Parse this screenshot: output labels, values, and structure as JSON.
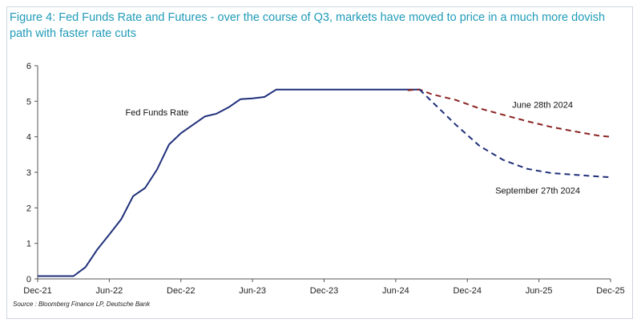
{
  "chart_data": {
    "type": "line",
    "title": "Figure 4: Fed Funds Rate and Futures - over the course of Q3, markets have moved to price in a much more dovish path with faster rate cuts",
    "source": "Source : Bloomberg Finance LP, Deutsche Bank",
    "xlabel": "",
    "ylabel": "",
    "x_ticks": [
      "Dec-21",
      "Jun-22",
      "Dec-22",
      "Jun-23",
      "Dec-23",
      "Jun-24",
      "Dec-24",
      "Jun-25",
      "Dec-25"
    ],
    "y_ticks": [
      "0",
      "1",
      "2",
      "3",
      "4",
      "5",
      "6"
    ],
    "ylim": [
      0,
      6
    ],
    "x_range_months": [
      0,
      48
    ],
    "series": [
      {
        "name": "Fed Funds Rate",
        "style": "solid",
        "color": "#1f2f7a",
        "points": [
          [
            0,
            0.08
          ],
          [
            2,
            0.08
          ],
          [
            3,
            0.08
          ],
          [
            4,
            0.33
          ],
          [
            5,
            0.83
          ],
          [
            6,
            1.25
          ],
          [
            7,
            1.68
          ],
          [
            8,
            2.33
          ],
          [
            9,
            2.56
          ],
          [
            10,
            3.08
          ],
          [
            11,
            3.78
          ],
          [
            12,
            4.1
          ],
          [
            14,
            4.57
          ],
          [
            15,
            4.65
          ],
          [
            16,
            4.83
          ],
          [
            17,
            5.06
          ],
          [
            18,
            5.08
          ],
          [
            19,
            5.12
          ],
          [
            20,
            5.33
          ],
          [
            24,
            5.33
          ],
          [
            29,
            5.33
          ],
          [
            32,
            5.33
          ]
        ]
      },
      {
        "name": "June 28th 2024",
        "style": "dashed",
        "color": "#8b2323",
        "points": [
          [
            31,
            5.31
          ],
          [
            32,
            5.33
          ],
          [
            33,
            5.2
          ],
          [
            35,
            5.04
          ],
          [
            37,
            4.8
          ],
          [
            39,
            4.62
          ],
          [
            41,
            4.44
          ],
          [
            43,
            4.28
          ],
          [
            45,
            4.15
          ],
          [
            47,
            4.03
          ],
          [
            48,
            4.0
          ]
        ]
      },
      {
        "name": "September 27th 2024",
        "style": "dashed",
        "color": "#1f2f7a",
        "points": [
          [
            32,
            5.33
          ],
          [
            33,
            5.0
          ],
          [
            35,
            4.35
          ],
          [
            37,
            3.75
          ],
          [
            39,
            3.35
          ],
          [
            41,
            3.1
          ],
          [
            43,
            2.98
          ],
          [
            45,
            2.93
          ],
          [
            47,
            2.88
          ],
          [
            48,
            2.86
          ]
        ]
      }
    ],
    "annotations": [
      {
        "text": "Fed Funds Rate",
        "x": 10,
        "y": 4.6
      },
      {
        "text": "June 28th 2024",
        "x": 42.3,
        "y": 4.82
      },
      {
        "text": "September 27th 2024",
        "x": 41.9,
        "y": 2.4
      }
    ],
    "colors": {
      "axis": "#555555",
      "tick_text": "#222222",
      "title": "#1f9bb8"
    }
  }
}
